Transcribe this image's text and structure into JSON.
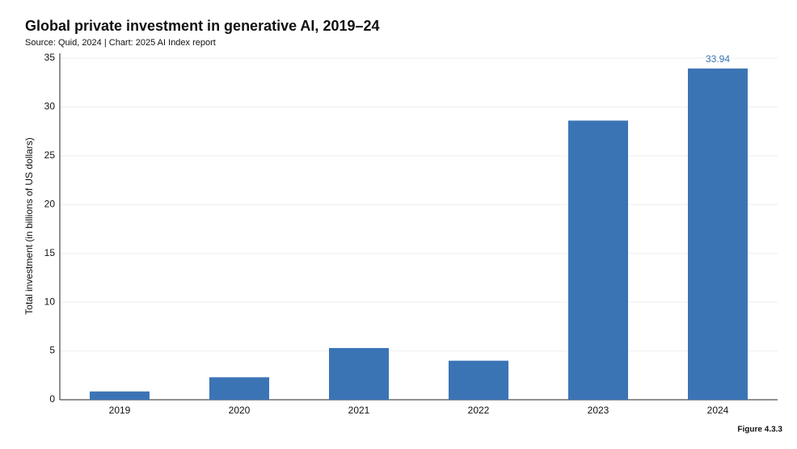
{
  "chart_data": {
    "type": "bar",
    "title": "Global private investment in generative AI, 2019–24",
    "subtitle": "Source: Quid, 2024 | Chart: 2025 AI Index report",
    "y_label": "Total investment (in billions of US dollars)",
    "note": "Figure 4.3.3",
    "categories": [
      "2019",
      "2020",
      "2021",
      "2022",
      "2023",
      "2024"
    ],
    "values": [
      0.85,
      2.3,
      5.3,
      4.0,
      28.6,
      33.94
    ],
    "value_labels": [
      null,
      null,
      null,
      null,
      null,
      "33.94"
    ],
    "color": "#3b74b5",
    "ylim": [
      0,
      35
    ],
    "yticks": [
      0,
      5,
      10,
      15,
      20,
      25,
      30,
      35
    ],
    "grid": true
  }
}
